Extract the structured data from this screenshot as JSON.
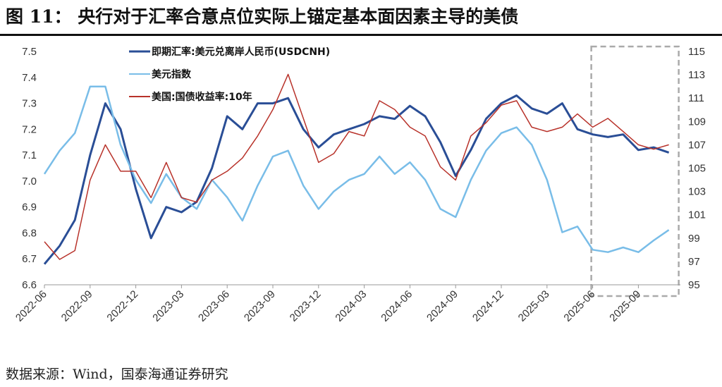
{
  "title": "图 11：  央行对于汇率合意点位实际上锚定基本面因素主导的美债",
  "source": "数据来源：Wind，国泰海通证券研究",
  "chart_data": {
    "type": "line",
    "x": [
      "2022-06",
      "2022-07",
      "2022-08",
      "2022-09",
      "2022-10",
      "2022-11",
      "2022-12",
      "2023-01",
      "2023-02",
      "2023-03",
      "2023-04",
      "2023-05",
      "2023-06",
      "2023-07",
      "2023-08",
      "2023-09",
      "2023-10",
      "2023-11",
      "2023-12",
      "2024-01",
      "2024-02",
      "2024-03",
      "2024-04",
      "2024-05",
      "2024-06",
      "2024-07",
      "2024-08",
      "2024-09",
      "2024-10",
      "2024-11",
      "2024-12",
      "2025-01",
      "2025-02",
      "2025-03",
      "2025-04",
      "2025-05",
      "2025-06",
      "2025-07",
      "2025-08",
      "2025-09",
      "2025-10",
      "2025-11"
    ],
    "xticks": [
      "2022-06",
      "2022-09",
      "2022-12",
      "2023-03",
      "2023-06",
      "2023-09",
      "2023-12",
      "2024-03",
      "2024-06",
      "2024-09",
      "2024-12",
      "2025-03",
      "2025-06",
      "2025-09"
    ],
    "yleft": {
      "lim": [
        6.6,
        7.5
      ],
      "ticks": [
        "7.5",
        "7.4",
        "7.3",
        "7.2",
        "7.1",
        "7.0",
        "6.9",
        "6.8",
        "6.7",
        "6.6"
      ]
    },
    "yright": {
      "lim": [
        95,
        115
      ],
      "ticks": [
        "115",
        "113",
        "111",
        "109",
        "107",
        "105",
        "103",
        "101",
        "99",
        "97",
        "95"
      ]
    },
    "legend_position": "top-left",
    "highlight_range": [
      "2025-06",
      "2025-11"
    ],
    "series": [
      {
        "name": "即期汇率:美元兑离岸人民币(USDCNH)",
        "axis": "left",
        "color": "#2a4e96",
        "values": [
          6.68,
          6.75,
          6.85,
          7.1,
          7.3,
          7.2,
          6.97,
          6.78,
          6.9,
          6.88,
          6.92,
          7.05,
          7.25,
          7.2,
          7.3,
          7.3,
          7.32,
          7.2,
          7.13,
          7.18,
          7.2,
          7.22,
          7.25,
          7.24,
          7.29,
          7.25,
          7.15,
          7.02,
          7.12,
          7.24,
          7.3,
          7.33,
          7.28,
          7.26,
          7.3,
          7.2,
          7.18,
          7.17,
          7.18,
          7.12,
          7.13,
          7.11
        ]
      },
      {
        "name": "美元指数",
        "axis": "right",
        "color": "#79bde8",
        "values": [
          104.5,
          106.5,
          108,
          112,
          112,
          107,
          104,
          102,
          104.5,
          102.5,
          101.5,
          104,
          102.5,
          100.5,
          103.5,
          106,
          106.5,
          103.5,
          101.5,
          103,
          104,
          104.5,
          106,
          104.5,
          105.5,
          104,
          101.5,
          100.8,
          104,
          106.5,
          108,
          108.5,
          107,
          104,
          99.5,
          100,
          98,
          97.8,
          98.2,
          97.8,
          98.8,
          99.7
        ]
      },
      {
        "name": "美国:国债收益率:10年",
        "axis": "hidden",
        "color": "#b8322a",
        "values": [
          3.0,
          2.8,
          2.9,
          3.7,
          4.1,
          3.8,
          3.8,
          3.5,
          3.9,
          3.5,
          3.45,
          3.7,
          3.8,
          3.95,
          4.2,
          4.5,
          4.9,
          4.4,
          3.9,
          4.0,
          4.25,
          4.2,
          4.6,
          4.5,
          4.3,
          4.2,
          3.85,
          3.7,
          4.2,
          4.35,
          4.55,
          4.6,
          4.3,
          4.25,
          4.3,
          4.45,
          4.3,
          4.4,
          4.25,
          4.1,
          4.05,
          4.1
        ]
      }
    ]
  }
}
